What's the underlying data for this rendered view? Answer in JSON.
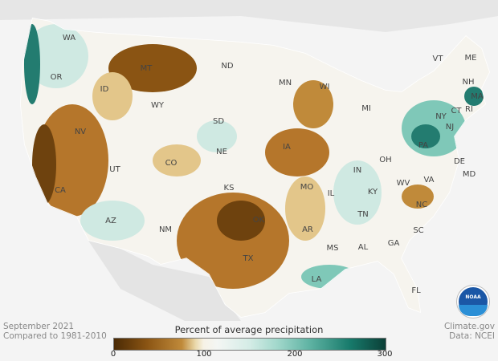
{
  "map": {
    "states": [
      "WA",
      "OR",
      "CA",
      "NV",
      "ID",
      "MT",
      "WY",
      "UT",
      "AZ",
      "CO",
      "NM",
      "ND",
      "SD",
      "NE",
      "KS",
      "OK",
      "TX",
      "MN",
      "IA",
      "MO",
      "AR",
      "LA",
      "WI",
      "IL",
      "MI",
      "IN",
      "OH",
      "KY",
      "TN",
      "MS",
      "AL",
      "GA",
      "FL",
      "SC",
      "NC",
      "VA",
      "WV",
      "PA",
      "NY",
      "VT",
      "NH",
      "ME",
      "MA",
      "RI",
      "CT",
      "NJ",
      "DE",
      "MD"
    ],
    "colors": {
      "very_dry": "#6e420e",
      "dry": "#b5762b",
      "slightly_dry": "#e3c68a",
      "near_normal": "#f6f4ee",
      "slightly_wet": "#cfe9e2",
      "wet": "#7fc8b8",
      "very_wet": "#237c70"
    }
  },
  "caption": {
    "period": "September 2021",
    "baseline": "Compared to 1981-2010"
  },
  "credit": {
    "source": "Climate.gov",
    "data": "Data: NCEI"
  },
  "legend": {
    "title": "Percent of average precipitation",
    "ticks": [
      "0",
      "100",
      "200",
      "300"
    ],
    "range": [
      0,
      300
    ]
  },
  "logo": {
    "text": "NOAA"
  }
}
